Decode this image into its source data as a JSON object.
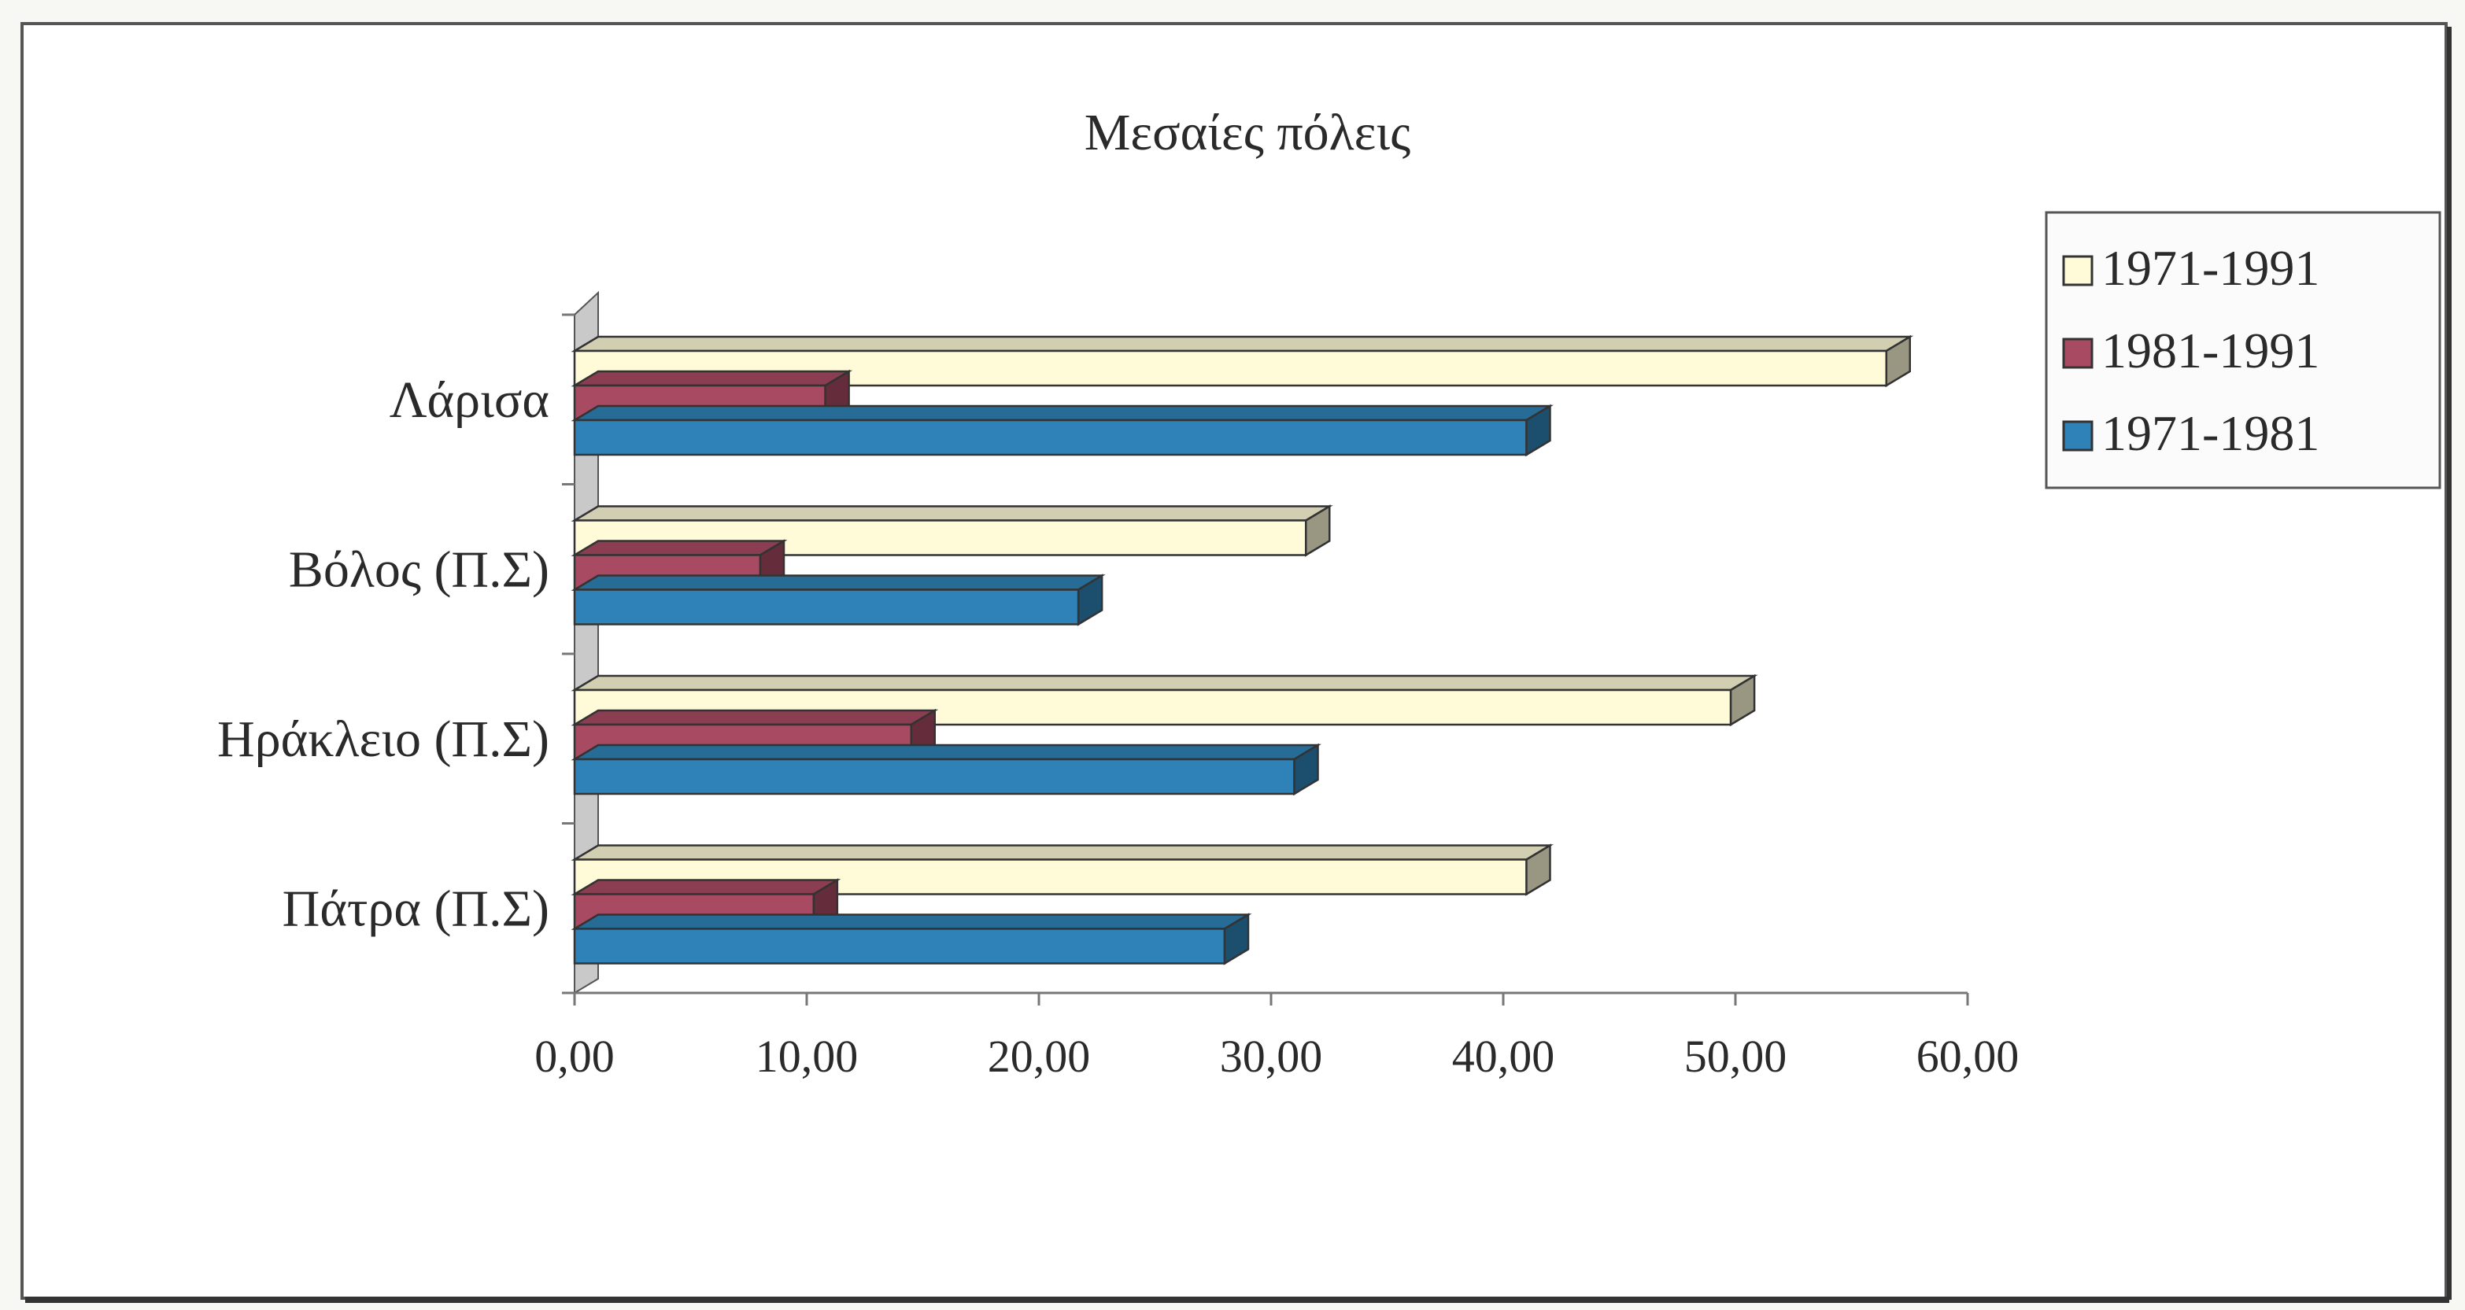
{
  "chart_data": {
    "type": "bar",
    "orientation": "horizontal",
    "three_d": true,
    "title": "Μεσαίες πόλεις",
    "xlabel": "",
    "ylabel": "",
    "categories": [
      "Λάρισα",
      "Βόλος (Π.Σ)",
      "Ηράκλειο (Π.Σ)",
      "Πάτρα (Π.Σ)"
    ],
    "series": [
      {
        "name": "1971-1991",
        "color": "#fffbd9",
        "values": [
          56.5,
          31.5,
          49.8,
          41.0
        ]
      },
      {
        "name": "1981-1991",
        "color": "#a94a63",
        "values": [
          10.8,
          8.0,
          14.5,
          10.3
        ]
      },
      {
        "name": "1971-1981",
        "color": "#2f82b8",
        "values": [
          41.0,
          21.7,
          31.0,
          28.0
        ]
      }
    ],
    "xlim": [
      0,
      60
    ],
    "xticks": [
      "0,00",
      "10,00",
      "20,00",
      "30,00",
      "40,00",
      "50,00",
      "60,00"
    ],
    "grid": false,
    "legend_position": "top-right"
  }
}
